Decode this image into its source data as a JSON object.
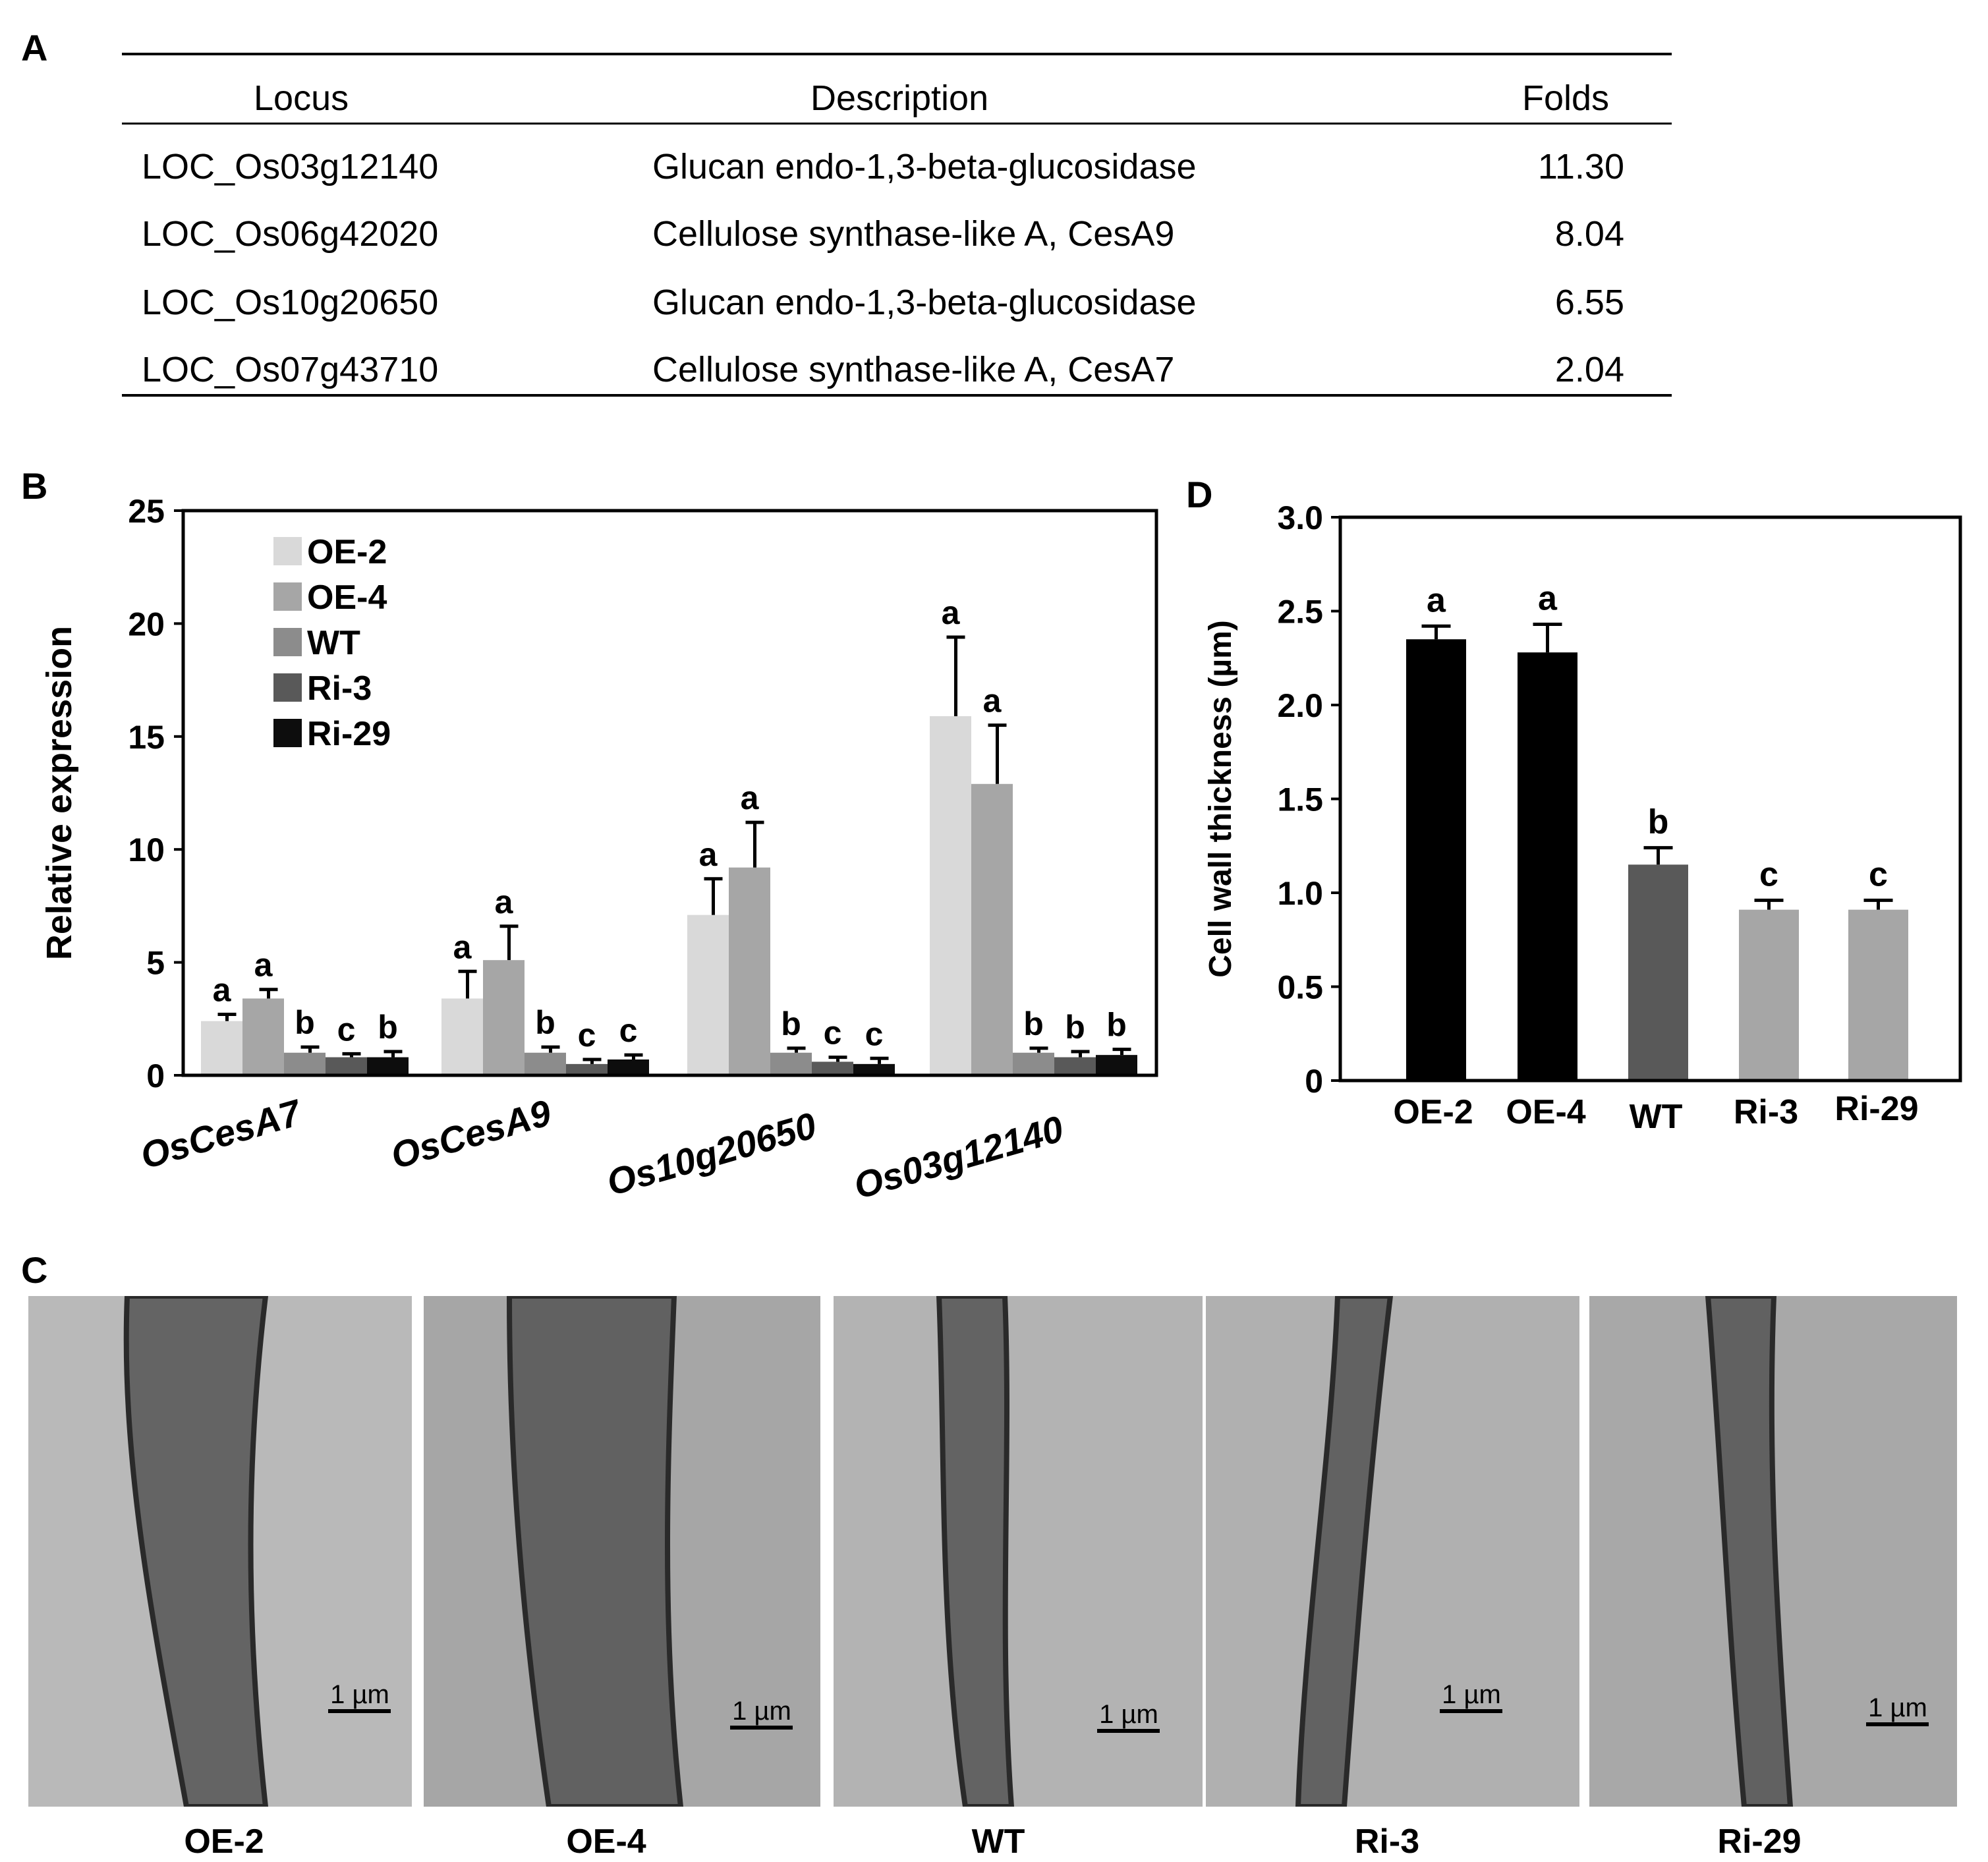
{
  "panels": {
    "A": "A",
    "B": "B",
    "C": "C",
    "D": "D"
  },
  "table": {
    "headers": {
      "locus": "Locus",
      "description": "Description",
      "folds": "Folds"
    },
    "rows": [
      {
        "locus": "LOC_Os03g12140",
        "description": "Glucan endo-1,3-beta-glucosidase",
        "folds": "11.30"
      },
      {
        "locus": "LOC_Os06g42020",
        "description": "Cellulose synthase-like A, CesA9",
        "folds": "8.04"
      },
      {
        "locus": "LOC_Os10g20650",
        "description": "Glucan endo-1,3-beta-glucosidase",
        "folds": "6.55"
      },
      {
        "locus": "LOC_Os07g43710",
        "description": "Cellulose synthase-like A, CesA7",
        "folds": "2.04"
      }
    ]
  },
  "chart_data": [
    {
      "type": "bar",
      "panel": "B",
      "ylabel": "Relative expression",
      "ylim": [
        0,
        25
      ],
      "yticks": [
        0,
        5,
        10,
        15,
        20,
        25
      ],
      "legend_position": "top-left",
      "categories": [
        "OsCesA7",
        "OsCesA9",
        "Os10g20650",
        "Os03g12140"
      ],
      "series": [
        {
          "name": "OE-2",
          "color": "#d9d9d9",
          "values": [
            2.4,
            3.4,
            7.1,
            15.9
          ],
          "errors": [
            0.3,
            1.2,
            1.6,
            3.5
          ],
          "letters": [
            "a",
            "a",
            "a",
            "a"
          ]
        },
        {
          "name": "OE-4",
          "color": "#a6a6a6",
          "values": [
            3.4,
            5.1,
            9.2,
            12.9
          ],
          "errors": [
            0.4,
            1.5,
            2.0,
            2.6
          ],
          "letters": [
            "a",
            "a",
            "a",
            "a"
          ]
        },
        {
          "name": "WT",
          "color": "#8c8c8c",
          "values": [
            1.0,
            1.0,
            1.0,
            1.0
          ],
          "errors": [
            0.25,
            0.25,
            0.2,
            0.2
          ],
          "letters": [
            "b",
            "b",
            "b",
            "b"
          ]
        },
        {
          "name": "Ri-3",
          "color": "#595959",
          "values": [
            0.8,
            0.5,
            0.6,
            0.8
          ],
          "errors": [
            0.15,
            0.2,
            0.2,
            0.25
          ],
          "letters": [
            "c",
            "c",
            "c",
            "b"
          ]
        },
        {
          "name": "Ri-29",
          "color": "#0d0d0d",
          "values": [
            0.8,
            0.7,
            0.5,
            0.9
          ],
          "errors": [
            0.25,
            0.2,
            0.25,
            0.25
          ],
          "letters": [
            "b",
            "c",
            "c",
            "b"
          ]
        }
      ]
    },
    {
      "type": "bar",
      "panel": "D",
      "ylabel": "Cell wall thickness (µm)",
      "ylim": [
        0,
        3.0
      ],
      "yticks": [
        "0",
        "0.5",
        "1.0",
        "1.5",
        "2.0",
        "2.5",
        "3.0"
      ],
      "categories": [
        "OE-2",
        "OE-4",
        "WT",
        "Ri-3",
        "Ri-29"
      ],
      "values": [
        2.35,
        2.28,
        1.15,
        0.91,
        0.91
      ],
      "errors": [
        0.07,
        0.15,
        0.09,
        0.05,
        0.05
      ],
      "letters": [
        "a",
        "a",
        "b",
        "c",
        "c"
      ],
      "colors": [
        "#000000",
        "#000000",
        "#595959",
        "#a6a6a6",
        "#a6a6a6"
      ]
    }
  ],
  "micrographs": [
    {
      "label": "OE-2",
      "scale": "1 µm"
    },
    {
      "label": "OE-4",
      "scale": "1 µm"
    },
    {
      "label": "WT",
      "scale": "1 µm"
    },
    {
      "label": "Ri-3",
      "scale": "1 µm"
    },
    {
      "label": "Ri-29",
      "scale": "1 µm"
    }
  ]
}
